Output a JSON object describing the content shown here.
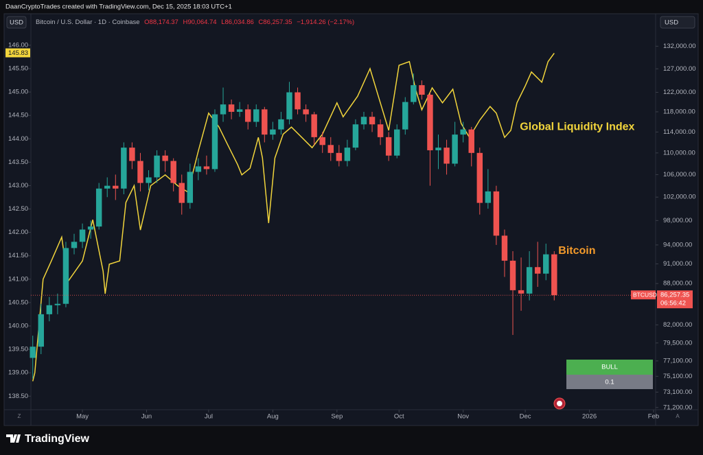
{
  "header": {
    "attribution": "DaanCryptoTrades created with TradingView.com, Dec 15, 2025 18:03 UTC+1",
    "currency_left": "USD",
    "currency_right": "USD"
  },
  "legend": {
    "symbol": "Bitcoin / U.S. Dollar · 1D · Coinbase",
    "open": "O88,174.37",
    "high": "H90,064.74",
    "low": "L86,034.86",
    "close": "C86,257.35",
    "change": "−1,914.26 (−2.17%)"
  },
  "signal": {
    "state": "BULL",
    "reading": "0.1"
  },
  "axis_buttons": {
    "left": "Z",
    "right": "A"
  },
  "footer": {
    "brand": "TradingView"
  },
  "chart_data": {
    "type": "candlestick",
    "xlim": [
      -0.9,
      301
    ],
    "xticks": [
      {
        "value": 24,
        "label": "May"
      },
      {
        "value": 55,
        "label": "Jun"
      },
      {
        "value": 85,
        "label": "Jul"
      },
      {
        "value": 116,
        "label": "Aug"
      },
      {
        "value": 147,
        "label": "Sep"
      },
      {
        "value": 177,
        "label": "Oct"
      },
      {
        "value": 208,
        "label": "Nov"
      },
      {
        "value": 238,
        "label": "Dec"
      },
      {
        "value": 269,
        "label": "2026"
      },
      {
        "value": 300,
        "label": "Feb"
      }
    ],
    "ylim": [
      138.24,
      146.38
    ],
    "yticks": [
      {
        "value": 146,
        "label": "146.00"
      },
      {
        "value": 145.5,
        "label": "145.50"
      },
      {
        "value": 145,
        "label": "145.00"
      },
      {
        "value": 144.5,
        "label": "144.50"
      },
      {
        "value": 144,
        "label": "144.00"
      },
      {
        "value": 143.5,
        "label": "143.50"
      },
      {
        "value": 143,
        "label": "143.00"
      },
      {
        "value": 142.5,
        "label": "142.50"
      },
      {
        "value": 142,
        "label": "142.00"
      },
      {
        "value": 141.5,
        "label": "141.50"
      },
      {
        "value": 141,
        "label": "141.00"
      },
      {
        "value": 140.5,
        "label": "140.50"
      },
      {
        "value": 140,
        "label": "140.00"
      },
      {
        "value": 139.5,
        "label": "139.50"
      },
      {
        "value": 139,
        "label": "139.00"
      },
      {
        "value": 138.5,
        "label": "138.50"
      }
    ],
    "y2lim": [
      71100,
      136300
    ],
    "y2log": true,
    "y2ticks": [
      {
        "value": 132000,
        "label": "132,000.00"
      },
      {
        "value": 127000,
        "label": "127,000.00"
      },
      {
        "value": 122000,
        "label": "122,000.00"
      },
      {
        "value": 118000,
        "label": "118,000.00"
      },
      {
        "value": 114000,
        "label": "114,000.00"
      },
      {
        "value": 110000,
        "label": "110,000.00"
      },
      {
        "value": 106000,
        "label": "106,000.00"
      },
      {
        "value": 102000,
        "label": "102,000.00"
      },
      {
        "value": 98000,
        "label": "98,000.00"
      },
      {
        "value": 94000,
        "label": "94,000.00"
      },
      {
        "value": 91000,
        "label": "91,000.00"
      },
      {
        "value": 88000,
        "label": "88,000.00"
      },
      {
        "value": 82000,
        "label": "82,000.00"
      },
      {
        "value": 79500,
        "label": "79,500.00"
      },
      {
        "value": 77100,
        "label": "77,100.00"
      },
      {
        "value": 75100,
        "label": "75,100.00"
      },
      {
        "value": 73100,
        "label": "73,100.00"
      },
      {
        "value": 71200,
        "label": "71,200.00"
      }
    ],
    "series": [
      {
        "name": "Global Liquidity Index",
        "type": "line",
        "color": "#f2d53c",
        "last_label": "145.83",
        "x": [
          0,
          1,
          5,
          9,
          14,
          17,
          24,
          29,
          34,
          35,
          37,
          42,
          45,
          49,
          52,
          57,
          64,
          70,
          75,
          80,
          85,
          90,
          94,
          99,
          101,
          105,
          109,
          111,
          114,
          117,
          121,
          125,
          130,
          135,
          140,
          147,
          150,
          157,
          163,
          167,
          172,
          177,
          182,
          185,
          188,
          193,
          198,
          203,
          207,
          211,
          216,
          221,
          224,
          228,
          231,
          234,
          238,
          241,
          246,
          249,
          252
        ],
        "values": [
          138.82,
          139.0,
          141.0,
          141.39,
          141.9,
          140.95,
          141.39,
          142.27,
          141.17,
          140.69,
          141.32,
          141.39,
          142.64,
          143.0,
          142.05,
          143.0,
          143.23,
          143.0,
          142.86,
          143.74,
          144.55,
          144.25,
          143.89,
          143.45,
          143.23,
          143.37,
          144.03,
          143.59,
          142.2,
          143.59,
          144.1,
          144.25,
          144.03,
          143.81,
          144.1,
          144.77,
          144.47,
          144.91,
          145.5,
          144.91,
          144.18,
          145.57,
          145.65,
          145.06,
          144.62,
          145.09,
          144.77,
          145.06,
          144.33,
          144.03,
          144.4,
          144.69,
          144.55,
          144.03,
          144.18,
          144.77,
          145.13,
          145.43,
          145.21,
          145.65,
          145.83
        ]
      },
      {
        "name": "Bitcoin",
        "type": "candlestick",
        "axis": "y2",
        "label_color": "#f39a2b",
        "up_color": "#26a69a",
        "down_color": "#ef5350",
        "symbol": "BTCUSD",
        "last_label": "86,257.35",
        "countdown": "06:56:42",
        "x": [
          0,
          4,
          8,
          12,
          16,
          20,
          24,
          28,
          32,
          36,
          40,
          44,
          48,
          52,
          56,
          60,
          64,
          68,
          72,
          76,
          80,
          84,
          88,
          92,
          96,
          100,
          104,
          108,
          112,
          116,
          120,
          124,
          128,
          132,
          136,
          140,
          144,
          148,
          152,
          156,
          160,
          164,
          168,
          172,
          176,
          180,
          184,
          188,
          192,
          196,
          200,
          204,
          208,
          212,
          216,
          220,
          224,
          228,
          232,
          236,
          240,
          244,
          248,
          252
        ],
        "open": [
          77500,
          79000,
          83500,
          84800,
          85000,
          93500,
          94500,
          96500,
          97000,
          103500,
          104000,
          103500,
          111000,
          108500,
          104500,
          105500,
          109500,
          108500,
          104500,
          101000,
          106500,
          107500,
          107000,
          117500,
          119500,
          118000,
          118500,
          116000,
          118500,
          113500,
          114500,
          116500,
          122000,
          118500,
          117500,
          113000,
          111500,
          110000,
          108500,
          111000,
          115500,
          117000,
          115500,
          113000,
          109500,
          114500,
          120000,
          123500,
          121500,
          110500,
          111000,
          108000,
          113500,
          114500,
          110000,
          101000,
          103000,
          95500,
          91500,
          87000,
          86500,
          90500,
          89500,
          92500
        ],
        "high": [
          80500,
          85000,
          86000,
          86500,
          94500,
          95800,
          97500,
          98000,
          104500,
          105500,
          106000,
          112000,
          112000,
          110000,
          106800,
          110500,
          110500,
          109000,
          106000,
          108000,
          109000,
          109500,
          118500,
          123000,
          120500,
          120000,
          119500,
          119500,
          119000,
          116000,
          118000,
          124200,
          123000,
          119500,
          118000,
          114000,
          113000,
          111500,
          112500,
          116500,
          118000,
          118000,
          116500,
          114000,
          115500,
          121000,
          126000,
          124500,
          122000,
          113500,
          112500,
          116000,
          116000,
          115000,
          111000,
          107000,
          104000,
          96500,
          93000,
          92000,
          93000,
          94500,
          94200,
          93000
        ],
        "low": [
          74800,
          78000,
          82500,
          83500,
          84500,
          92500,
          93500,
          95000,
          96500,
          102000,
          101500,
          102500,
          107000,
          103000,
          103200,
          104500,
          106500,
          103000,
          99000,
          100000,
          105000,
          106000,
          106500,
          116000,
          116500,
          117000,
          114500,
          115000,
          112000,
          112500,
          113500,
          115500,
          117500,
          116000,
          111500,
          110000,
          108500,
          107500,
          107500,
          110500,
          114500,
          114000,
          111500,
          108500,
          109000,
          113500,
          119500,
          120500,
          104000,
          107000,
          106000,
          107500,
          112000,
          107500,
          99000,
          100000,
          94000,
          89000,
          80600,
          84000,
          85500,
          87500,
          88500,
          85500
        ],
        "close": [
          79000,
          83500,
          84800,
          85000,
          93500,
          94500,
          96500,
          97000,
          103500,
          104000,
          103500,
          111000,
          108500,
          104500,
          105500,
          109500,
          108500,
          104500,
          101000,
          106500,
          107500,
          107000,
          117500,
          119500,
          118000,
          118500,
          116000,
          118500,
          113500,
          114500,
          116500,
          122000,
          118500,
          117500,
          113000,
          111500,
          110000,
          108500,
          111000,
          115500,
          117000,
          115500,
          113000,
          109500,
          114500,
          120000,
          123500,
          121500,
          110500,
          111000,
          108000,
          113500,
          114500,
          110000,
          101000,
          103000,
          95500,
          91500,
          87000,
          86500,
          90500,
          89500,
          92500,
          86257.35
        ]
      }
    ]
  }
}
